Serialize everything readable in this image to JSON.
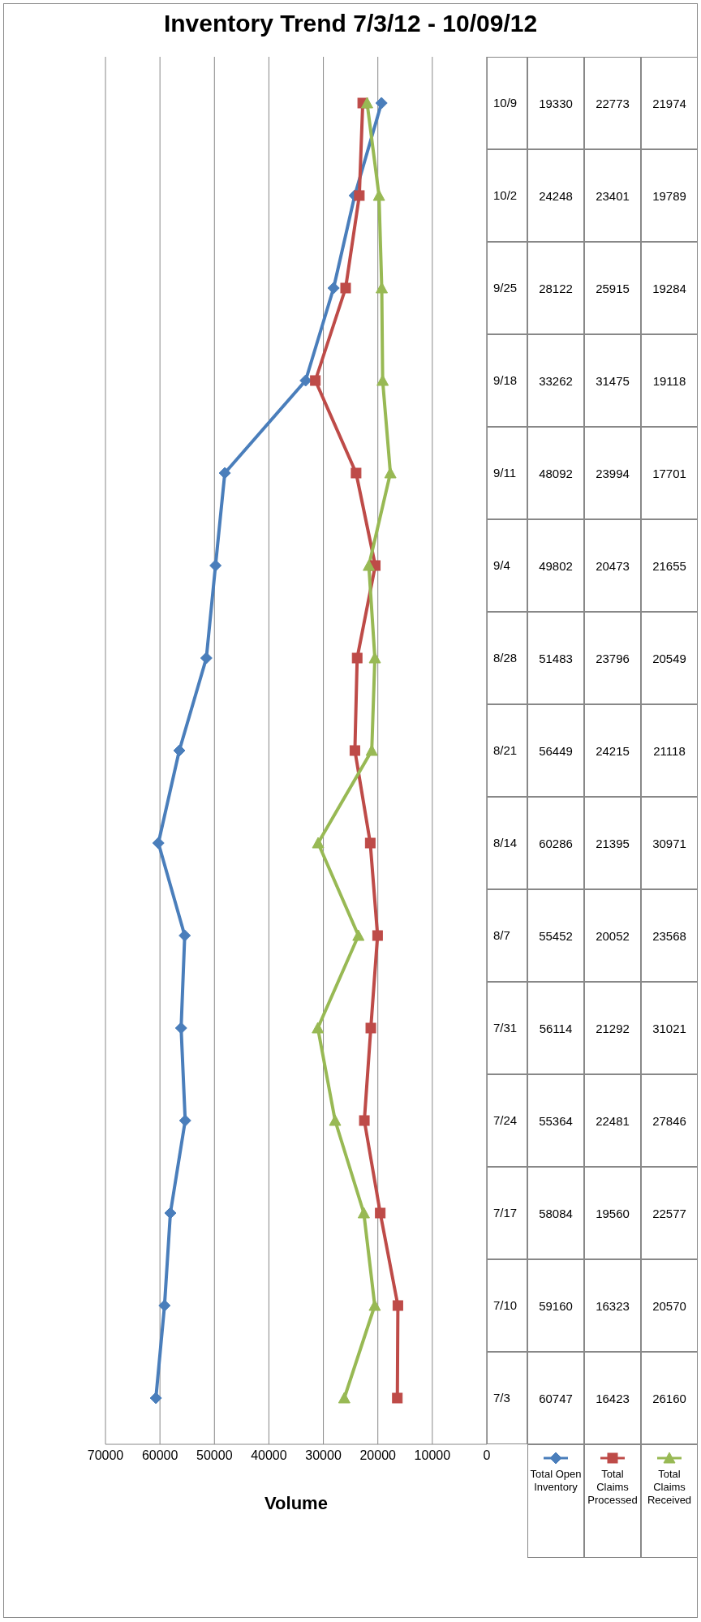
{
  "chart_data": {
    "type": "line",
    "orientation": "horizontal",
    "title": "Inventory Trend 7/3/12 - 10/09/12",
    "xlabel": "Volume",
    "categories": [
      "10/9",
      "10/2",
      "9/25",
      "9/18",
      "9/11",
      "9/4",
      "8/28",
      "8/21",
      "8/14",
      "8/7",
      "7/31",
      "7/24",
      "7/17",
      "7/10",
      "7/3"
    ],
    "series": [
      {
        "name": "Total Open Inventory",
        "color": "#4a7ebb",
        "marker": "diamond",
        "values": [
          19330,
          24248,
          28122,
          33262,
          48092,
          49802,
          51483,
          56449,
          60286,
          55452,
          56114,
          55364,
          58084,
          59160,
          60747
        ]
      },
      {
        "name": "Total Claims Processed",
        "color": "#be4b48",
        "marker": "square",
        "values": [
          22773,
          23401,
          25915,
          31475,
          23994,
          20473,
          23796,
          24215,
          21395,
          20052,
          21292,
          22481,
          19560,
          16323,
          16423
        ]
      },
      {
        "name": "Total Claims Received",
        "color": "#98b954",
        "marker": "triangle",
        "values": [
          21974,
          19789,
          19284,
          19118,
          17701,
          21655,
          20549,
          21118,
          30971,
          23568,
          31021,
          27846,
          22577,
          20570,
          26160
        ]
      }
    ],
    "xlim": [
      70000,
      0
    ],
    "xticks": [
      0,
      10000,
      20000,
      30000,
      40000,
      50000,
      60000,
      70000
    ],
    "grid": "x",
    "legend": "bottom right",
    "data_labels": true
  }
}
